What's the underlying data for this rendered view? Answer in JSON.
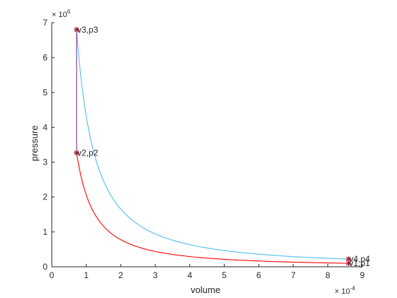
{
  "chart_data": {
    "type": "line",
    "xlabel": "volume",
    "ylabel": "pressure",
    "x_multiplier": {
      "base": "× 10",
      "exponent": "-4"
    },
    "y_multiplier": {
      "base": "× 10",
      "exponent": "6"
    },
    "xlim": [
      0,
      9
    ],
    "ylim": [
      0,
      7
    ],
    "x_ticks": [
      0,
      1,
      2,
      3,
      4,
      5,
      6,
      7,
      8,
      9
    ],
    "y_ticks": [
      0,
      1,
      2,
      3,
      4,
      5,
      6,
      7
    ],
    "grid": false,
    "colors": {
      "compression": "#ff0000",
      "expansion": "#4dbeee",
      "heat_addition": "#7e2f8e",
      "markers": "#a2142f",
      "axes": "#262626"
    },
    "series": [
      {
        "key": "compression",
        "color": "#ff0000",
        "curve": {
          "from": [
            0.72,
            3.27
          ],
          "to": [
            8.6,
            0.1
          ]
        }
      },
      {
        "key": "expansion",
        "color": "#4dbeee",
        "curve": {
          "from": [
            0.72,
            6.8
          ],
          "to": [
            8.6,
            0.22
          ]
        }
      },
      {
        "key": "heat_addition",
        "color": "#7e2f8e",
        "points": [
          [
            0.72,
            3.27
          ],
          [
            0.72,
            6.8
          ]
        ]
      }
    ],
    "state_points": [
      {
        "label": "v1,p1",
        "x": 8.6,
        "y": 0.1
      },
      {
        "label": "v2,p2",
        "x": 0.72,
        "y": 3.27
      },
      {
        "label": "v3,p3",
        "x": 0.72,
        "y": 6.8
      },
      {
        "label": "v4,p4",
        "x": 8.6,
        "y": 0.22
      }
    ]
  }
}
